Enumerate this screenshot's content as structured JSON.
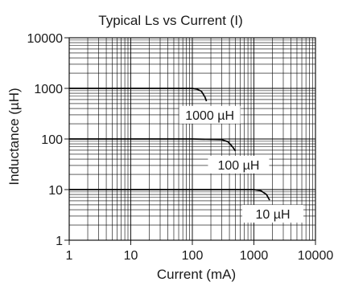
{
  "chart_data": {
    "type": "line",
    "title": "Typical Ls vs Current (I)",
    "xlabel": "Current (mA)",
    "ylabel": "Inductance (µH)",
    "x_scale": "log",
    "y_scale": "log",
    "xlim": [
      1,
      10000
    ],
    "ylim": [
      1,
      10000
    ],
    "x_ticks": [
      "1",
      "10",
      "100",
      "1000",
      "10000"
    ],
    "y_ticks": [
      "1",
      "10",
      "100",
      "1000",
      "10000"
    ],
    "grid": true,
    "series": [
      {
        "name": "1000 µH",
        "x": [
          1,
          10,
          100,
          120,
          140,
          160,
          170
        ],
        "y": [
          1000,
          1000,
          1000,
          960,
          880,
          680,
          560
        ]
      },
      {
        "name": "100 µH",
        "x": [
          1,
          10,
          100,
          300,
          380,
          450,
          500
        ],
        "y": [
          100,
          100,
          100,
          97,
          88,
          70,
          58
        ]
      },
      {
        "name": "10 µH",
        "x": [
          1,
          10,
          100,
          1000,
          1300,
          1600,
          1800
        ],
        "y": [
          10,
          10,
          10,
          10,
          9.5,
          8,
          6.2
        ]
      }
    ]
  }
}
